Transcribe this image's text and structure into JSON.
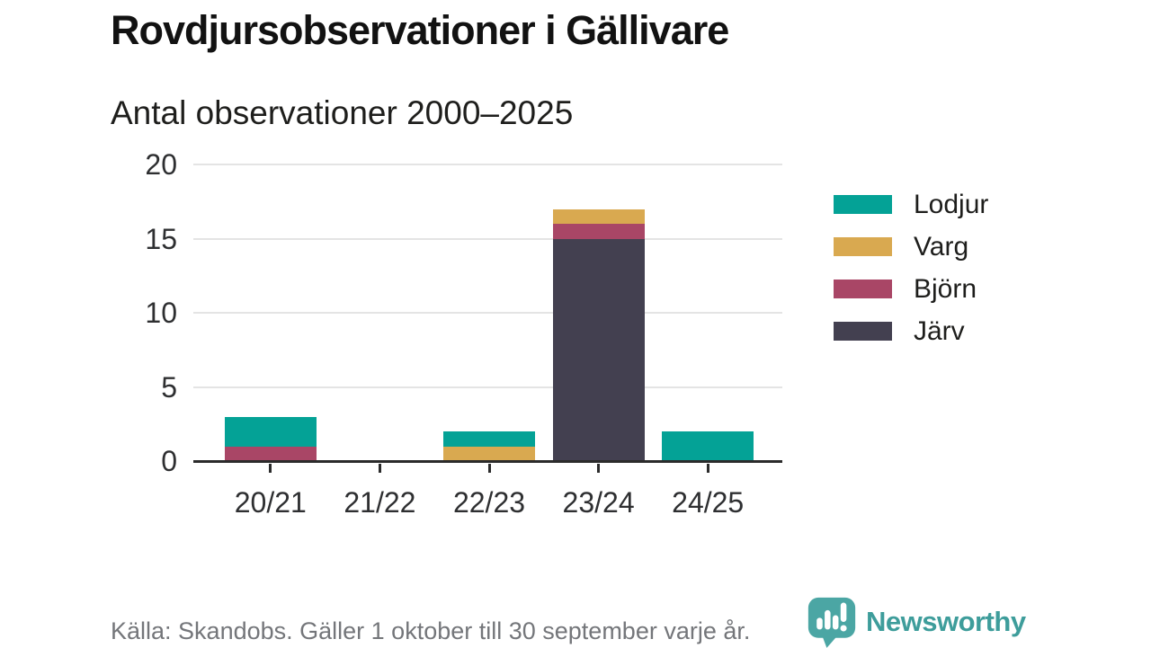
{
  "header": {
    "title": "Rovdjursobservationer i Gällivare",
    "subtitle": "Antal observationer 2000–2025"
  },
  "chart_data": {
    "type": "bar",
    "stacked": true,
    "title": "Rovdjursobservationer i Gällivare",
    "subtitle": "Antal observationer 2000–2025",
    "categories": [
      "20/21",
      "21/22",
      "22/23",
      "23/24",
      "24/25"
    ],
    "series": [
      {
        "name": "Lodjur",
        "color": "#04A296",
        "values": [
          2,
          0,
          1,
          0,
          2
        ]
      },
      {
        "name": "Varg",
        "color": "#D9A950",
        "values": [
          0,
          0,
          1,
          1,
          0
        ]
      },
      {
        "name": "Björn",
        "color": "#A94666",
        "values": [
          1,
          0,
          0,
          1,
          0
        ]
      },
      {
        "name": "Järv",
        "color": "#434050",
        "values": [
          0,
          0,
          0,
          15,
          0
        ]
      }
    ],
    "stack_order_bottom_to_top": [
      "Järv",
      "Björn",
      "Varg",
      "Lodjur"
    ],
    "totals_by_category": [
      3,
      0,
      2,
      17,
      2
    ],
    "xlabel": "",
    "ylabel": "",
    "ylim": [
      0,
      20
    ],
    "yticks": [
      0,
      5,
      10,
      15,
      20
    ],
    "grid": "horizontal-only",
    "legend_position": "right",
    "source_note": "Källa: Skandobs. Gäller 1 oktober till 30 september varje år."
  },
  "footer": {
    "source": "Källa: Skandobs. Gäller 1 oktober till 30 september varje år.",
    "brand": "Newsworthy"
  },
  "colors": {
    "axis_line": "#2B2B2B",
    "gridline": "#E4E4E4",
    "brand_text": "#3E9D9B",
    "logo_icon": "#4BA6A4",
    "muted_text": "#74767A"
  }
}
